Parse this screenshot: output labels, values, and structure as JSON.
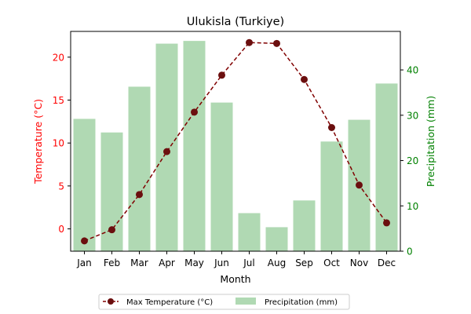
{
  "chart_data": {
    "type": "bar+line",
    "title": "Ulukisla (Turkiye)",
    "xlabel": "Month",
    "ylabel_left": "Temperature (°C)",
    "ylabel_right": "Precipitation (mm)",
    "categories": [
      "Jan",
      "Feb",
      "Mar",
      "Apr",
      "May",
      "Jun",
      "Jul",
      "Aug",
      "Sep",
      "Oct",
      "Nov",
      "Dec"
    ],
    "series": [
      {
        "name": "Max Temperature (°C)",
        "type": "line",
        "axis": "left",
        "values": [
          -1.4,
          -0.1,
          4.0,
          9.0,
          13.6,
          17.9,
          21.7,
          21.6,
          17.4,
          11.8,
          5.1,
          0.7
        ]
      },
      {
        "name": "Precipitation (mm)",
        "type": "bar",
        "axis": "right",
        "values": [
          29.2,
          26.2,
          36.3,
          45.8,
          46.4,
          32.8,
          8.4,
          5.3,
          11.2,
          24.2,
          29.0,
          37.0
        ]
      }
    ],
    "ylim_left": [
      -2.6,
      23.0
    ],
    "ylim_right": [
      0,
      48.5
    ],
    "yticks_left": [
      0,
      5,
      10,
      15,
      20
    ],
    "yticks_right": [
      0,
      10,
      20,
      30,
      40
    ],
    "legend_position": "bottom-center",
    "grid": false,
    "colors": {
      "line": "#800000",
      "marker": "#6b0f0f",
      "bar": "#b0d9b3",
      "left_axis": "#ff0000",
      "right_axis": "#008000"
    }
  }
}
